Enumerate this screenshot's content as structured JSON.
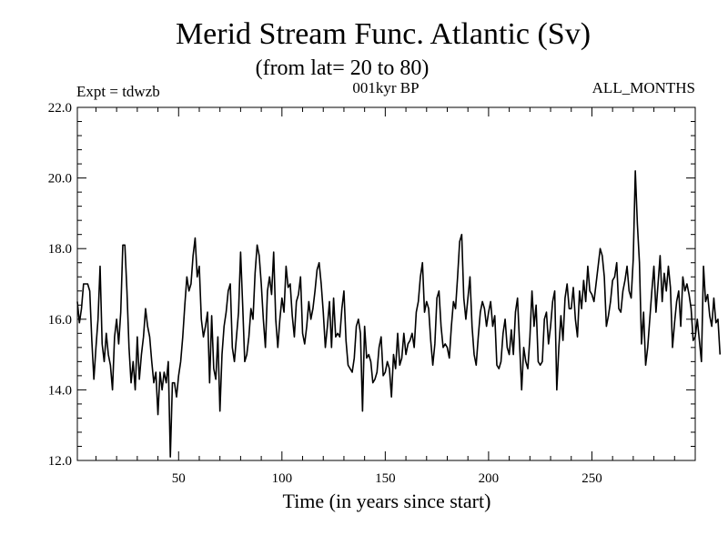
{
  "chart_data": {
    "type": "line",
    "title": "Merid Stream Func. Atlantic (Sv)",
    "subtitle": "(from lat= 20 to 80)",
    "left_label": "Expt = tdwzb",
    "center_label": "001kyr BP",
    "right_label": "ALL_MONTHS",
    "xlabel": "Time (in years since start)",
    "ylabel": "",
    "xlim": [
      1,
      300
    ],
    "ylim": [
      12.0,
      22.0
    ],
    "x_ticks": [
      50,
      100,
      150,
      200,
      250
    ],
    "x_tick_labels": [
      "50",
      "100",
      "150",
      "200",
      "250"
    ],
    "y_ticks": [
      12,
      14,
      16,
      18,
      20,
      22
    ],
    "y_tick_labels": [
      "12.0",
      "14.0",
      "16.0",
      "18.0",
      "20.0",
      "22.0"
    ],
    "grid": false,
    "series": [
      {
        "name": "Merid Stream Func. Atlantic",
        "x_start": 1,
        "x_step": 1,
        "values": [
          16.5,
          15.9,
          16.3,
          17.0,
          17.0,
          17.0,
          16.8,
          15.4,
          14.3,
          15.2,
          16.0,
          17.5,
          15.3,
          14.8,
          15.6,
          15.0,
          14.7,
          14.0,
          15.5,
          16.0,
          15.3,
          16.2,
          18.1,
          18.1,
          16.8,
          15.2,
          14.2,
          14.8,
          14.0,
          15.5,
          14.3,
          15.0,
          15.5,
          16.3,
          15.8,
          15.5,
          14.8,
          14.2,
          14.5,
          13.3,
          14.5,
          14.0,
          14.5,
          14.2,
          14.8,
          12.1,
          14.2,
          14.2,
          13.8,
          14.4,
          14.8,
          15.5,
          16.4,
          17.2,
          16.8,
          17.0,
          17.8,
          18.3,
          17.2,
          17.5,
          16.0,
          15.5,
          15.8,
          16.2,
          14.2,
          16.1,
          14.6,
          14.3,
          15.5,
          13.4,
          15.0,
          15.8,
          16.2,
          16.8,
          17.0,
          15.2,
          14.8,
          15.5,
          16.2,
          17.9,
          16.4,
          14.8,
          15.0,
          15.5,
          16.3,
          16.0,
          17.3,
          18.1,
          17.8,
          17.0,
          16.0,
          15.2,
          16.8,
          17.2,
          16.7,
          17.9,
          16.0,
          15.2,
          16.0,
          16.6,
          16.2,
          17.5,
          16.9,
          17.0,
          16.1,
          15.5,
          16.5,
          16.7,
          17.2,
          15.6,
          15.3,
          15.8,
          16.5,
          16.0,
          16.3,
          16.8,
          17.4,
          17.6,
          17.0,
          16.2,
          15.2,
          15.8,
          16.5,
          15.2,
          16.6,
          15.5,
          15.6,
          15.5,
          16.3,
          16.8,
          15.4,
          14.7,
          14.6,
          14.5,
          14.9,
          15.8,
          16.0,
          15.6,
          13.4,
          15.8,
          14.9,
          15.0,
          14.8,
          14.2,
          14.3,
          14.5,
          15.2,
          15.5,
          14.4,
          14.5,
          14.8,
          14.6,
          13.8,
          15.0,
          14.6,
          15.6,
          14.7,
          14.9,
          15.6,
          15.0,
          15.3,
          15.4,
          15.6,
          15.2,
          16.2,
          16.5,
          17.2,
          17.6,
          16.2,
          16.5,
          16.3,
          15.4,
          14.7,
          15.3,
          16.6,
          16.8,
          15.8,
          15.2,
          15.3,
          15.2,
          14.9,
          15.8,
          16.5,
          16.3,
          17.2,
          18.2,
          18.4,
          16.6,
          16.0,
          16.6,
          17.2,
          15.8,
          15.0,
          14.7,
          15.5,
          16.2,
          16.5,
          16.3,
          15.8,
          16.2,
          16.5,
          15.8,
          16.1,
          14.7,
          14.6,
          14.8,
          15.6,
          16.0,
          15.2,
          15.0,
          15.7,
          15.0,
          16.2,
          16.6,
          15.3,
          14.0,
          15.2,
          14.8,
          14.6,
          15.5,
          16.8,
          15.8,
          16.4,
          14.8,
          14.7,
          14.8,
          16.0,
          16.2,
          15.3,
          15.8,
          16.5,
          16.8,
          14.0,
          15.2,
          16.1,
          15.4,
          16.6,
          17.0,
          16.3,
          16.3,
          16.9,
          16.0,
          15.5,
          16.8,
          16.3,
          17.1,
          16.5,
          17.5,
          16.8,
          16.7,
          16.5,
          17.0,
          17.5,
          18.0,
          17.8,
          17.2,
          15.8,
          16.1,
          16.5,
          17.1,
          17.2,
          17.6,
          16.3,
          16.2,
          16.8,
          17.1,
          17.5,
          16.8,
          16.6,
          17.7,
          20.2,
          18.7,
          17.6,
          15.3,
          16.2,
          14.7,
          15.2,
          16.0,
          16.8,
          17.5,
          16.2,
          17.0,
          17.8,
          16.5,
          17.3,
          16.8,
          17.5,
          16.9,
          15.2,
          15.9,
          16.5,
          16.8,
          15.8,
          17.2,
          16.8,
          17.0,
          16.7,
          16.3,
          15.4,
          15.5,
          16.0,
          15.4,
          14.8,
          17.5,
          16.5,
          16.7,
          16.1,
          15.8,
          16.6,
          15.9,
          16.0,
          15.0
        ]
      }
    ]
  }
}
